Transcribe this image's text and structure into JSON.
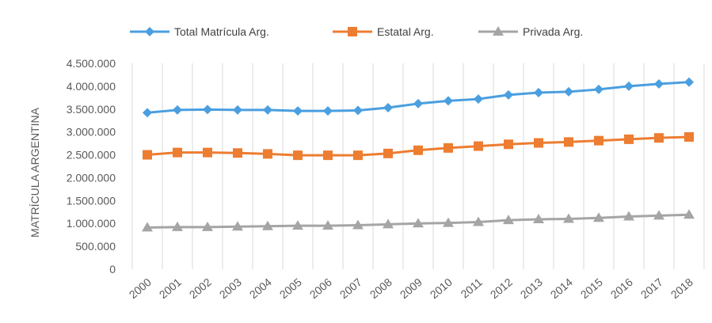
{
  "chart_data": {
    "type": "line",
    "title": "",
    "ylabel": "MATRÍCULA ARGENTINA",
    "xlabel": "",
    "x": [
      "2000",
      "2001",
      "2002",
      "2003",
      "2004",
      "2005",
      "2006",
      "2007",
      "2008",
      "2009",
      "2010",
      "2011",
      "2012",
      "2013",
      "2014",
      "2015",
      "2016",
      "2017",
      "2018"
    ],
    "ylim": [
      0,
      4500000
    ],
    "yticks": [
      {
        "value": 0,
        "label": "0"
      },
      {
        "value": 500000,
        "label": "500.000"
      },
      {
        "value": 1000000,
        "label": "1.000.000"
      },
      {
        "value": 1500000,
        "label": "1.500.000"
      },
      {
        "value": 2000000,
        "label": "2.000.000"
      },
      {
        "value": 2500000,
        "label": "2.500.000"
      },
      {
        "value": 3000000,
        "label": "3.000.000"
      },
      {
        "value": 3500000,
        "label": "3.500.000"
      },
      {
        "value": 4000000,
        "label": "4.000.000"
      },
      {
        "value": 4500000,
        "label": "4.500.000"
      }
    ],
    "grid": "vertical",
    "legend": "top",
    "series": [
      {
        "name": "Total Matrícula Arg.",
        "color": "#4a9fe0",
        "marker": "diamond",
        "values": [
          3420000,
          3480000,
          3490000,
          3480000,
          3480000,
          3460000,
          3460000,
          3470000,
          3530000,
          3620000,
          3680000,
          3720000,
          3810000,
          3860000,
          3880000,
          3930000,
          4000000,
          4050000,
          4090000
        ]
      },
      {
        "name": "Estatal Arg.",
        "color": "#ed7d31",
        "marker": "square",
        "values": [
          2500000,
          2550000,
          2550000,
          2540000,
          2520000,
          2490000,
          2490000,
          2490000,
          2530000,
          2600000,
          2650000,
          2690000,
          2730000,
          2760000,
          2780000,
          2810000,
          2840000,
          2870000,
          2890000
        ]
      },
      {
        "name": "Privada Arg.",
        "color": "#a5a5a5",
        "marker": "triangle",
        "values": [
          910000,
          920000,
          920000,
          930000,
          940000,
          950000,
          950000,
          960000,
          980000,
          1000000,
          1010000,
          1030000,
          1070000,
          1090000,
          1100000,
          1120000,
          1150000,
          1170000,
          1190000
        ]
      }
    ]
  }
}
